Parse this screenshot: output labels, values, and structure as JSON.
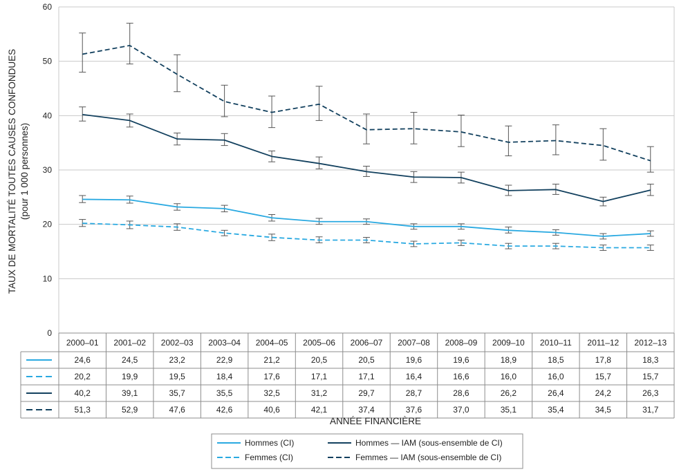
{
  "chart_data": {
    "type": "line",
    "ylabel": "TAUX DE MORTALITÉ TOUTES CAUSES CONFONDUES",
    "ylabel_sub": "(pour 1 000 personnes)",
    "xlabel": "ANNÉE FINANCIÈRE",
    "ylim": [
      0,
      60
    ],
    "yticks": [
      0,
      10,
      20,
      30,
      40,
      50,
      60
    ],
    "grid": true,
    "legend_position": "bottom",
    "categories": [
      "2000–01",
      "2001–02",
      "2002–03",
      "2003–04",
      "2004–05",
      "2005–06",
      "2006–07",
      "2007–08",
      "2008–09",
      "2009–10",
      "2010–11",
      "2011–12",
      "2012–13"
    ],
    "series": [
      {
        "name": "Hommes (CI)",
        "color": "#29a9e1",
        "dash": "solid",
        "values": [
          24.6,
          24.5,
          23.2,
          22.9,
          21.2,
          20.5,
          20.5,
          19.6,
          19.6,
          18.9,
          18.5,
          17.8,
          18.3
        ],
        "labels": [
          "24,6",
          "24,5",
          "23,2",
          "22,9",
          "21,2",
          "20,5",
          "20,5",
          "19,6",
          "19,6",
          "18,9",
          "18,5",
          "17,8",
          "18,3"
        ],
        "err_low": [
          24.0,
          23.9,
          22.6,
          22.3,
          20.6,
          20.0,
          20.0,
          19.1,
          19.1,
          18.4,
          18.0,
          17.3,
          17.8
        ],
        "err_high": [
          25.3,
          25.2,
          23.8,
          23.5,
          21.8,
          21.1,
          21.0,
          20.1,
          20.1,
          19.5,
          19.0,
          18.3,
          18.8
        ]
      },
      {
        "name": "Femmes (CI)",
        "color": "#29a9e1",
        "dash": "dashed",
        "values": [
          20.2,
          19.9,
          19.5,
          18.4,
          17.6,
          17.1,
          17.1,
          16.4,
          16.6,
          16.0,
          16.0,
          15.7,
          15.7
        ],
        "labels": [
          "20,2",
          "19,9",
          "19,5",
          "18,4",
          "17,6",
          "17,1",
          "17,1",
          "16,4",
          "16,6",
          "16,0",
          "16,0",
          "15,7",
          "15,7"
        ],
        "err_low": [
          19.6,
          19.2,
          18.9,
          17.9,
          17.0,
          16.6,
          16.6,
          15.9,
          16.1,
          15.5,
          15.5,
          15.2,
          15.2
        ],
        "err_high": [
          20.9,
          20.6,
          20.1,
          18.9,
          18.2,
          17.7,
          17.6,
          16.9,
          17.1,
          16.5,
          16.5,
          16.2,
          16.2
        ]
      },
      {
        "name": "Hommes — IAM (sous-ensemble de CI)",
        "color": "#12405e",
        "dash": "solid",
        "values": [
          40.2,
          39.1,
          35.7,
          35.5,
          32.5,
          31.2,
          29.7,
          28.7,
          28.6,
          26.2,
          26.4,
          24.2,
          26.3
        ],
        "labels": [
          "40,2",
          "39,1",
          "35,7",
          "35,5",
          "32,5",
          "31,2",
          "29,7",
          "28,7",
          "28,6",
          "26,2",
          "26,4",
          "24,2",
          "26,3"
        ],
        "err_low": [
          39.0,
          37.9,
          34.6,
          34.5,
          31.5,
          30.2,
          28.8,
          27.7,
          27.6,
          25.3,
          25.5,
          23.4,
          25.3
        ],
        "err_high": [
          41.6,
          40.3,
          36.8,
          36.7,
          33.5,
          32.4,
          30.7,
          29.7,
          29.6,
          27.2,
          27.4,
          25.0,
          27.4
        ]
      },
      {
        "name": "Femmes — IAM (sous-ensemble de CI)",
        "color": "#12405e",
        "dash": "dashed",
        "values": [
          51.3,
          52.9,
          47.6,
          42.6,
          40.6,
          42.1,
          37.4,
          37.6,
          37.0,
          35.1,
          35.4,
          34.5,
          31.7
        ],
        "labels": [
          "51,3",
          "52,9",
          "47,6",
          "42,6",
          "40,6",
          "42,1",
          "37,4",
          "37,6",
          "37,0",
          "35,1",
          "35,4",
          "34,5",
          "31,7"
        ],
        "err_low": [
          48.0,
          49.5,
          44.4,
          39.8,
          37.8,
          39.1,
          34.8,
          34.8,
          34.3,
          32.6,
          32.8,
          31.8,
          29.6
        ],
        "err_high": [
          55.2,
          57.0,
          51.2,
          45.6,
          43.6,
          45.4,
          40.3,
          40.6,
          40.1,
          38.1,
          38.3,
          37.6,
          34.3
        ]
      }
    ],
    "legend_order": [
      0,
      2,
      1,
      3
    ]
  }
}
